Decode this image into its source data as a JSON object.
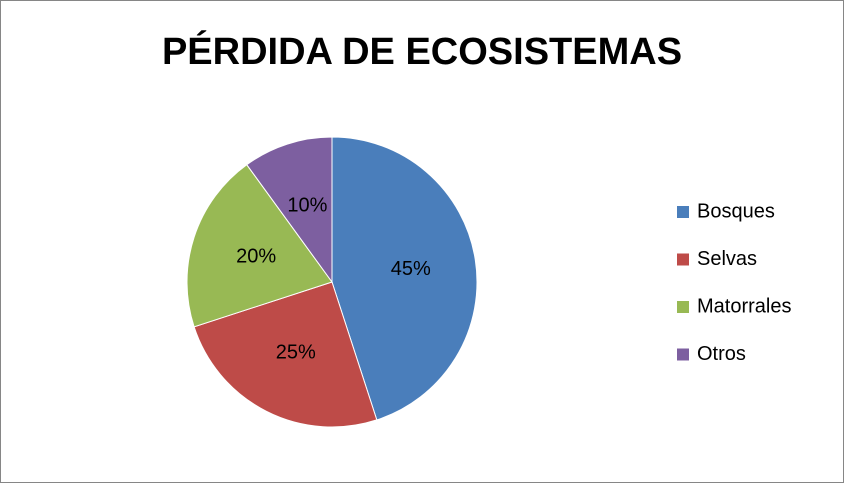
{
  "chart_data": {
    "type": "pie",
    "title": "PÉRDIDA DE ECOSISTEMAS",
    "categories": [
      "Bosques",
      "Selvas",
      "Matorrales",
      "Otros"
    ],
    "values": [
      45,
      25,
      20,
      10
    ],
    "value_labels": [
      "45%",
      "25%",
      "20%",
      "10%"
    ],
    "colors": [
      "#4a7ebb",
      "#be4b48",
      "#98b954",
      "#7d5fa0"
    ],
    "legend": "right"
  }
}
